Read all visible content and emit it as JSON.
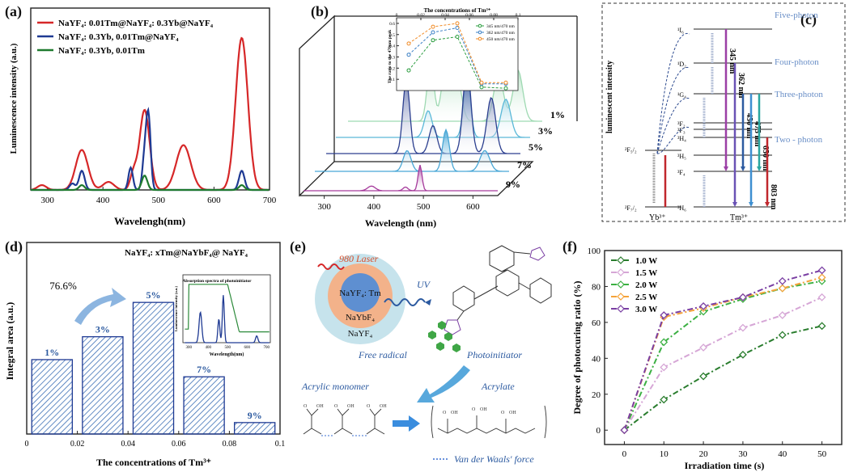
{
  "chart_data": [
    {
      "id": "a",
      "panel_label": "(a)",
      "type": "line",
      "xlabel": "Wavelengh(nm)",
      "ylabel": "Luminescence intensity (a.u.)",
      "xlim": [
        270,
        700
      ],
      "xticks": [
        300,
        400,
        500,
        600,
        700
      ],
      "series": [
        {
          "name": "NaYF₄: 0.01Tm@NaYF₄: 0.3Yb@NaYF₄",
          "color": "#d62728",
          "peaks": [
            [
              290,
              3,
              8
            ],
            [
              362,
              25,
              11
            ],
            [
              410,
              5,
              10
            ],
            [
              455,
              10,
              6
            ],
            [
              475,
              50,
              9
            ],
            [
              545,
              28,
              13
            ],
            [
              650,
              95,
              11
            ]
          ]
        },
        {
          "name": "NaYF₄: 0.3Yb, 0.01Tm@NaYF₄",
          "color": "#1f3a93",
          "peaks": [
            [
              345,
              4,
              5
            ],
            [
              362,
              12,
              5
            ],
            [
              450,
              14,
              4
            ],
            [
              475,
              20,
              4
            ],
            [
              482,
              45,
              4
            ],
            [
              650,
              12,
              5
            ]
          ]
        },
        {
          "name": "NaYF₄: 0.3Yb, 0.01Tm",
          "color": "#1e7a2e",
          "peaks": [
            [
              362,
              3,
              5
            ],
            [
              475,
              9,
              5
            ],
            [
              650,
              3,
              5
            ]
          ]
        }
      ]
    },
    {
      "id": "b",
      "panel_label": "(b)",
      "type": "line",
      "xlabel": "Wavelength (nm)",
      "xticks": [
        300,
        400,
        500,
        600
      ],
      "series": [
        {
          "name": "1%",
          "color": "#9ed9b2"
        },
        {
          "name": "3%",
          "color": "#5ab8d8"
        },
        {
          "name": "5%",
          "color": "#2c3f8f"
        },
        {
          "name": "7%",
          "color": "#49a7d6"
        },
        {
          "name": "9%",
          "color": "#a63b9c"
        }
      ],
      "inset": {
        "title": "The concentrations of  Tm³⁺",
        "ylabel": "The ratio to the 470nm peak",
        "x": [
          0.01,
          0.03,
          0.05,
          0.07,
          0.09
        ],
        "xticks": [
          0.0,
          0.02,
          0.04,
          0.06,
          0.08,
          0.1
        ],
        "yticks": [
          0.1,
          0.2,
          0.3,
          0.4,
          0.5,
          0.6
        ],
        "series": [
          {
            "name": "345 nm/470 nm",
            "color": "#2a9d3e",
            "values": [
              0.18,
              0.45,
              0.48,
              0.03,
              0.02
            ]
          },
          {
            "name": "362 nm/470 nm",
            "color": "#3a7fc4",
            "values": [
              0.32,
              0.52,
              0.56,
              0.06,
              0.06
            ]
          },
          {
            "name": "450 nm/470 nm",
            "color": "#f08a24",
            "values": [
              0.42,
              0.57,
              0.6,
              0.07,
              0.07
            ]
          }
        ]
      }
    },
    {
      "id": "c",
      "panel_label": "(c)",
      "type": "diagram",
      "ylabel": "luminescent intensity",
      "levels_yb": [
        "²F₅/₂",
        "²F₇/₂"
      ],
      "levels_tm": [
        "¹I₆",
        "¹D₂",
        "¹G₄",
        "³F₂",
        "³F₃",
        "³H₄",
        "³H₅",
        "³F₄",
        "³H₆"
      ],
      "processes": [
        "Five-photon",
        "Four-photon",
        "Three-photon",
        "Two - photon"
      ],
      "emissions": [
        "345 nm",
        "362 nm",
        "450 nm",
        "475 nm",
        "650 nm",
        "803 nm"
      ],
      "ion_labels": [
        "Yb³⁺",
        "Tm³⁺"
      ]
    },
    {
      "id": "d",
      "panel_label": "(d)",
      "type": "bar",
      "title": "NaYF₄: xTm@NaYbF₄@ NaYF₄",
      "xlabel": "The concentrations of  Tm³⁺",
      "ylabel": "Integral area (a.u.)",
      "x": [
        0.01,
        0.03,
        0.05,
        0.07,
        0.09
      ],
      "labels": [
        "1%",
        "3%",
        "5%",
        "7%",
        "9%"
      ],
      "values": [
        0.52,
        0.68,
        0.92,
        0.4,
        0.08
      ],
      "xticks": [
        0.0,
        0.02,
        0.04,
        0.06,
        0.08,
        0.1
      ],
      "annotation": "76.6%",
      "inset": {
        "title": "Absorption spectra of photoinitiator",
        "xlabel": "Wavelength(nm)",
        "ylabel": "Luminescence intensity (a.u.)",
        "xticks": [
          300,
          400,
          500,
          600,
          700
        ]
      }
    },
    {
      "id": "e",
      "panel_label": "(e)",
      "type": "diagram",
      "labels": {
        "laser": "980 Laser",
        "core": "NaYF₄: Tm",
        "shell1": "NaYbF₄",
        "shell2": "NaYF₄",
        "uv": "UV",
        "free_radical": "Free radical",
        "photoinitiator": "Photoinitiator",
        "acrylic": "Acrylic monomer",
        "acrylate": "Acrylate",
        "vdw": "Van der Waals' force"
      }
    },
    {
      "id": "f",
      "panel_label": "(f)",
      "type": "line",
      "xlabel": "Irradiation time (s)",
      "ylabel": "Degree of photocuring ratio (%)",
      "x": [
        0,
        10,
        20,
        30,
        40,
        50
      ],
      "xlim": [
        -5,
        55
      ],
      "ylim": [
        -8,
        100
      ],
      "xticks": [
        0,
        10,
        20,
        30,
        40,
        50
      ],
      "yticks": [
        0,
        20,
        40,
        60,
        80,
        100
      ],
      "series": [
        {
          "name": "1.0 W",
          "color": "#2a7d2e",
          "values": [
            0,
            17,
            30,
            42,
            53,
            58
          ]
        },
        {
          "name": "1.5 W",
          "color": "#d6a6d6",
          "values": [
            0,
            35,
            46,
            57,
            64,
            74
          ]
        },
        {
          "name": "2.0 W",
          "color": "#3cb043",
          "values": [
            0,
            49,
            66,
            73,
            79,
            83
          ]
        },
        {
          "name": "2.5 W",
          "color": "#f5a33a",
          "values": [
            0,
            63,
            68,
            74,
            79,
            85
          ]
        },
        {
          "name": "3.0 W",
          "color": "#7a3fa3",
          "values": [
            0,
            64,
            69,
            74,
            83,
            89
          ]
        }
      ]
    }
  ]
}
